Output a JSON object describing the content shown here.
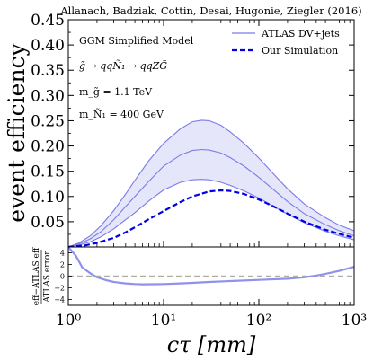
{
  "chart_data": [
    {
      "type": "line",
      "title": "Allanach, Badziak, Cottin, Desai, Hugonie, Ziegler (2016)",
      "ylabel": "event efficiency",
      "xscale": "log",
      "xlim": [
        1,
        1000
      ],
      "ylim": [
        0,
        0.45
      ],
      "yticks": [
        "0.05",
        "0.10",
        "0.15",
        "0.20",
        "0.25",
        "0.30",
        "0.35",
        "0.40",
        "0.45"
      ],
      "annotations": [
        "GGM Simplified Model",
        "g̃ → qqÑ₁ → qqZG̃",
        "m_g̃ = 1.1 TeV",
        "m_Ñ₁ = 400 GeV"
      ],
      "legend": {
        "placement": "top-right",
        "entries": [
          "ATLAS DV+jets",
          "Our Simulation"
        ]
      },
      "series": [
        {
          "name": "ATLAS DV+jets",
          "color": "#7b7be8",
          "style": "solid",
          "x": [
            1,
            1.3,
            1.7,
            2.2,
            3,
            4,
            5,
            7,
            10,
            15,
            20,
            25,
            30,
            40,
            50,
            70,
            100,
            150,
            200,
            300,
            500,
            700,
            1000
          ],
          "values": [
            0.0,
            0.006,
            0.016,
            0.03,
            0.054,
            0.08,
            0.1,
            0.13,
            0.16,
            0.182,
            0.191,
            0.193,
            0.192,
            0.186,
            0.177,
            0.16,
            0.138,
            0.11,
            0.09,
            0.066,
            0.044,
            0.032,
            0.022
          ],
          "band_upper": [
            0.0,
            0.008,
            0.022,
            0.042,
            0.072,
            0.105,
            0.132,
            0.171,
            0.205,
            0.234,
            0.248,
            0.251,
            0.25,
            0.241,
            0.228,
            0.205,
            0.176,
            0.14,
            0.115,
            0.085,
            0.058,
            0.043,
            0.032
          ],
          "band_lower": [
            0.0,
            0.004,
            0.01,
            0.02,
            0.036,
            0.054,
            0.068,
            0.091,
            0.113,
            0.128,
            0.133,
            0.134,
            0.133,
            0.128,
            0.122,
            0.111,
            0.097,
            0.078,
            0.065,
            0.048,
            0.031,
            0.022,
            0.014
          ],
          "band_color": "#e6e6fa"
        },
        {
          "name": "Our Simulation",
          "color": "#0000e6",
          "style": "dashed",
          "x": [
            1,
            1.5,
            2,
            3,
            4,
            5,
            7,
            10,
            15,
            20,
            30,
            40,
            50,
            70,
            100,
            150,
            200,
            300,
            500,
            700,
            1000
          ],
          "values": [
            0.0,
            0.003,
            0.008,
            0.018,
            0.029,
            0.039,
            0.055,
            0.071,
            0.089,
            0.1,
            0.11,
            0.112,
            0.111,
            0.105,
            0.094,
            0.078,
            0.066,
            0.05,
            0.034,
            0.026,
            0.018
          ]
        }
      ]
    },
    {
      "type": "line",
      "xlabel": "cτ [mm]",
      "ylabel": "eff−ATLAS eff / ATLAS error",
      "xscale": "log",
      "xlim": [
        1,
        1000
      ],
      "ylim": [
        -5,
        5
      ],
      "yticks": [
        "4",
        "2",
        "0",
        "−2",
        "−4"
      ],
      "xticks": [
        "10⁰",
        "10¹",
        "10²",
        "10³"
      ],
      "reference_line": {
        "value": 0,
        "color": "#b0b0a0",
        "style": "dashed"
      },
      "series": [
        {
          "color": "#9090ee",
          "x": [
            1,
            1.2,
            1.4,
            1.7,
            2,
            2.5,
            3,
            4,
            5,
            6,
            8,
            10,
            15,
            20,
            30,
            50,
            100,
            200,
            300,
            400,
            500,
            700,
            1000
          ],
          "values": [
            5.0,
            3.5,
            1.5,
            0.5,
            -0.2,
            -0.7,
            -1.0,
            -1.25,
            -1.35,
            -1.4,
            -1.38,
            -1.35,
            -1.25,
            -1.15,
            -1.0,
            -0.85,
            -0.65,
            -0.45,
            -0.2,
            0.1,
            0.4,
            0.9,
            1.6
          ]
        }
      ]
    }
  ]
}
